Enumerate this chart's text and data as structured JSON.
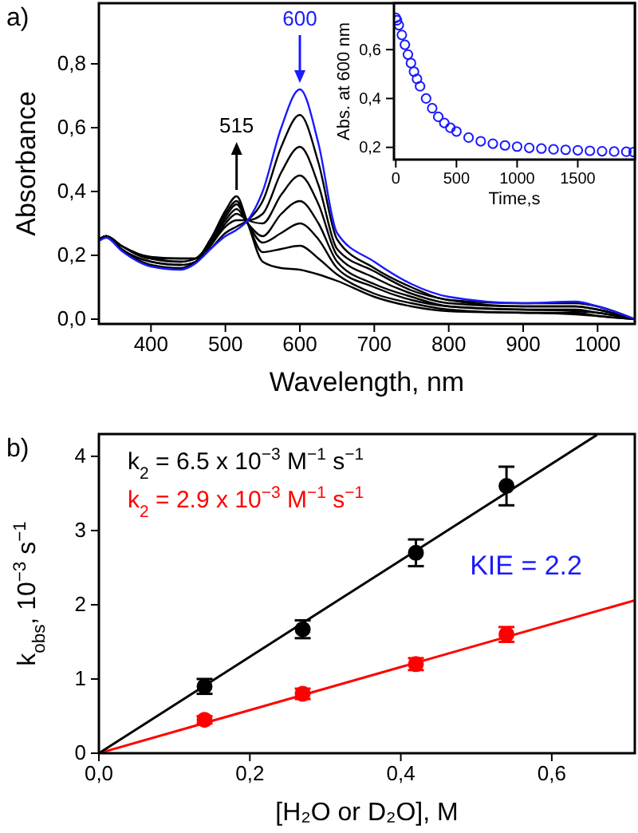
{
  "chart_data": [
    {
      "type": "line",
      "title": "a)",
      "xlabel": "Wavelength, nm",
      "ylabel": "Absorbance",
      "x": [
        330,
        340,
        360,
        400,
        440,
        460,
        480,
        500,
        515,
        530,
        550,
        575,
        600,
        625,
        650,
        700,
        750,
        800,
        900,
        970,
        1000,
        1050
      ],
      "series": [
        {
          "color": "#1a1aff",
          "values": [
            0.245,
            0.255,
            0.215,
            0.165,
            0.155,
            0.175,
            0.22,
            0.26,
            0.28,
            0.31,
            0.4,
            0.6,
            0.72,
            0.55,
            0.27,
            0.18,
            0.11,
            0.07,
            0.05,
            0.055,
            0.04,
            0.0
          ]
        },
        {
          "color": "#000000",
          "values": [
            0.25,
            0.26,
            0.22,
            0.17,
            0.16,
            0.18,
            0.22,
            0.27,
            0.29,
            0.31,
            0.37,
            0.54,
            0.64,
            0.49,
            0.25,
            0.16,
            0.1,
            0.06,
            0.05,
            0.05,
            0.04,
            0.0
          ]
        },
        {
          "color": "#000000",
          "values": [
            0.25,
            0.26,
            0.22,
            0.18,
            0.17,
            0.18,
            0.23,
            0.29,
            0.31,
            0.31,
            0.33,
            0.46,
            0.54,
            0.42,
            0.22,
            0.15,
            0.09,
            0.06,
            0.04,
            0.04,
            0.03,
            0.0
          ]
        },
        {
          "color": "#000000",
          "values": [
            0.25,
            0.26,
            0.22,
            0.18,
            0.17,
            0.18,
            0.23,
            0.3,
            0.33,
            0.31,
            0.3,
            0.39,
            0.45,
            0.36,
            0.2,
            0.13,
            0.08,
            0.05,
            0.04,
            0.04,
            0.03,
            0.0
          ]
        },
        {
          "color": "#000000",
          "values": [
            0.25,
            0.26,
            0.23,
            0.19,
            0.18,
            0.19,
            0.24,
            0.31,
            0.345,
            0.3,
            0.26,
            0.33,
            0.37,
            0.3,
            0.18,
            0.11,
            0.07,
            0.04,
            0.03,
            0.03,
            0.02,
            0.0
          ]
        },
        {
          "color": "#000000",
          "values": [
            0.25,
            0.26,
            0.23,
            0.19,
            0.18,
            0.19,
            0.24,
            0.32,
            0.36,
            0.3,
            0.24,
            0.27,
            0.3,
            0.25,
            0.16,
            0.1,
            0.06,
            0.04,
            0.03,
            0.025,
            0.02,
            0.0
          ]
        },
        {
          "color": "#000000",
          "values": [
            0.25,
            0.26,
            0.23,
            0.19,
            0.19,
            0.19,
            0.25,
            0.33,
            0.37,
            0.3,
            0.21,
            0.22,
            0.23,
            0.19,
            0.14,
            0.08,
            0.05,
            0.03,
            0.02,
            0.02,
            0.01,
            0.0
          ]
        },
        {
          "color": "#000000",
          "values": [
            0.25,
            0.26,
            0.23,
            0.195,
            0.19,
            0.19,
            0.25,
            0.34,
            0.385,
            0.3,
            0.18,
            0.16,
            0.155,
            0.14,
            0.12,
            0.07,
            0.04,
            0.025,
            0.02,
            0.015,
            0.01,
            0.0
          ]
        }
      ],
      "xlim": [
        330,
        1050
      ],
      "xticks": [
        400,
        500,
        600,
        700,
        800,
        900,
        1000
      ],
      "ylim": [
        -0.015,
        0.99
      ],
      "yticks": [
        {
          "value": 0,
          "label": "0,0"
        },
        {
          "value": 0.2,
          "label": "0,2"
        },
        {
          "value": 0.4,
          "label": "0,4"
        },
        {
          "value": 0.6,
          "label": "0,6"
        },
        {
          "value": 0.8,
          "label": "0,8"
        }
      ],
      "annotations": [
        {
          "text": "600",
          "x": 600,
          "y": 0.72
        },
        {
          "text": "515",
          "x": 515,
          "y": 0.385
        }
      ],
      "grid": false,
      "line_style": "solid"
    },
    {
      "type": "scatter",
      "xlabel": "Time,s",
      "ylabel": "Abs. at 600 nm",
      "marker": "circle",
      "x": [
        0,
        10,
        25,
        50,
        75,
        100,
        125,
        150,
        175,
        200,
        250,
        300,
        350,
        400,
        450,
        500,
        600,
        700,
        800,
        900,
        1000,
        1100,
        1200,
        1300,
        1400,
        1500,
        1600,
        1700,
        1800,
        1900,
        1960
      ],
      "series": [
        {
          "color": "#1a1aff",
          "values": [
            0.73,
            0.72,
            0.7,
            0.66,
            0.62,
            0.58,
            0.545,
            0.51,
            0.48,
            0.45,
            0.4,
            0.36,
            0.325,
            0.3,
            0.28,
            0.265,
            0.24,
            0.225,
            0.215,
            0.208,
            0.203,
            0.198,
            0.195,
            0.192,
            0.19,
            0.188,
            0.186,
            0.184,
            0.183,
            0.182,
            0.181
          ]
        }
      ],
      "xlim": [
        -15,
        1970
      ],
      "xticks": [
        0,
        500,
        1000,
        1500
      ],
      "ylim": [
        0.15,
        0.79
      ],
      "yticks": [
        {
          "value": 0.2,
          "label": "0,2"
        },
        {
          "value": 0.4,
          "label": "0,4"
        },
        {
          "value": 0.6,
          "label": "0,6"
        }
      ],
      "grid": false
    },
    {
      "type": "scatter",
      "title": "b)",
      "xlabel": "[H₂O or D₂O], M",
      "ylabel": "k$_{obs}$, 10$^{−3}$ s$^{−1}$",
      "series": [
        {
          "color": "#000000",
          "marker": "circle",
          "x": [
            0.14,
            0.27,
            0.42,
            0.54
          ],
          "values": [
            0.9,
            1.67,
            2.7,
            3.6
          ],
          "errors": [
            0.1,
            0.12,
            0.18,
            0.26
          ]
        },
        {
          "color": "#ff0000",
          "marker": "circle",
          "x": [
            0.14,
            0.27,
            0.42,
            0.54
          ],
          "values": [
            0.45,
            0.8,
            1.2,
            1.6
          ],
          "errors": [
            0.05,
            0.07,
            0.08,
            0.1
          ]
        },
        {
          "type": "line",
          "color": "#000000",
          "x": [
            0,
            0.66
          ],
          "values": [
            0,
            4.29
          ]
        },
        {
          "type": "line",
          "color": "#ff0000",
          "x": [
            0,
            0.71
          ],
          "values": [
            0,
            2.06
          ]
        }
      ],
      "xlim": [
        0,
        0.71
      ],
      "xticks": [
        {
          "value": 0,
          "label": "0,0"
        },
        {
          "value": 0.2,
          "label": "0,2"
        },
        {
          "value": 0.4,
          "label": "0,4"
        },
        {
          "value": 0.6,
          "label": "0,6"
        }
      ],
      "ylim": [
        0,
        4.3
      ],
      "yticks": [
        0,
        1,
        2,
        3,
        4
      ],
      "annotations": [
        "k$_{2}$ = 6.5 x 10$^{−3}$ M$^{−1}$ s$^{−1}$",
        "k$_{2}$ = 2.9 x 10$^{−3}$ M$^{−1}$ s$^{−1}$",
        "KIE = 2.2"
      ],
      "grid": false
    }
  ]
}
